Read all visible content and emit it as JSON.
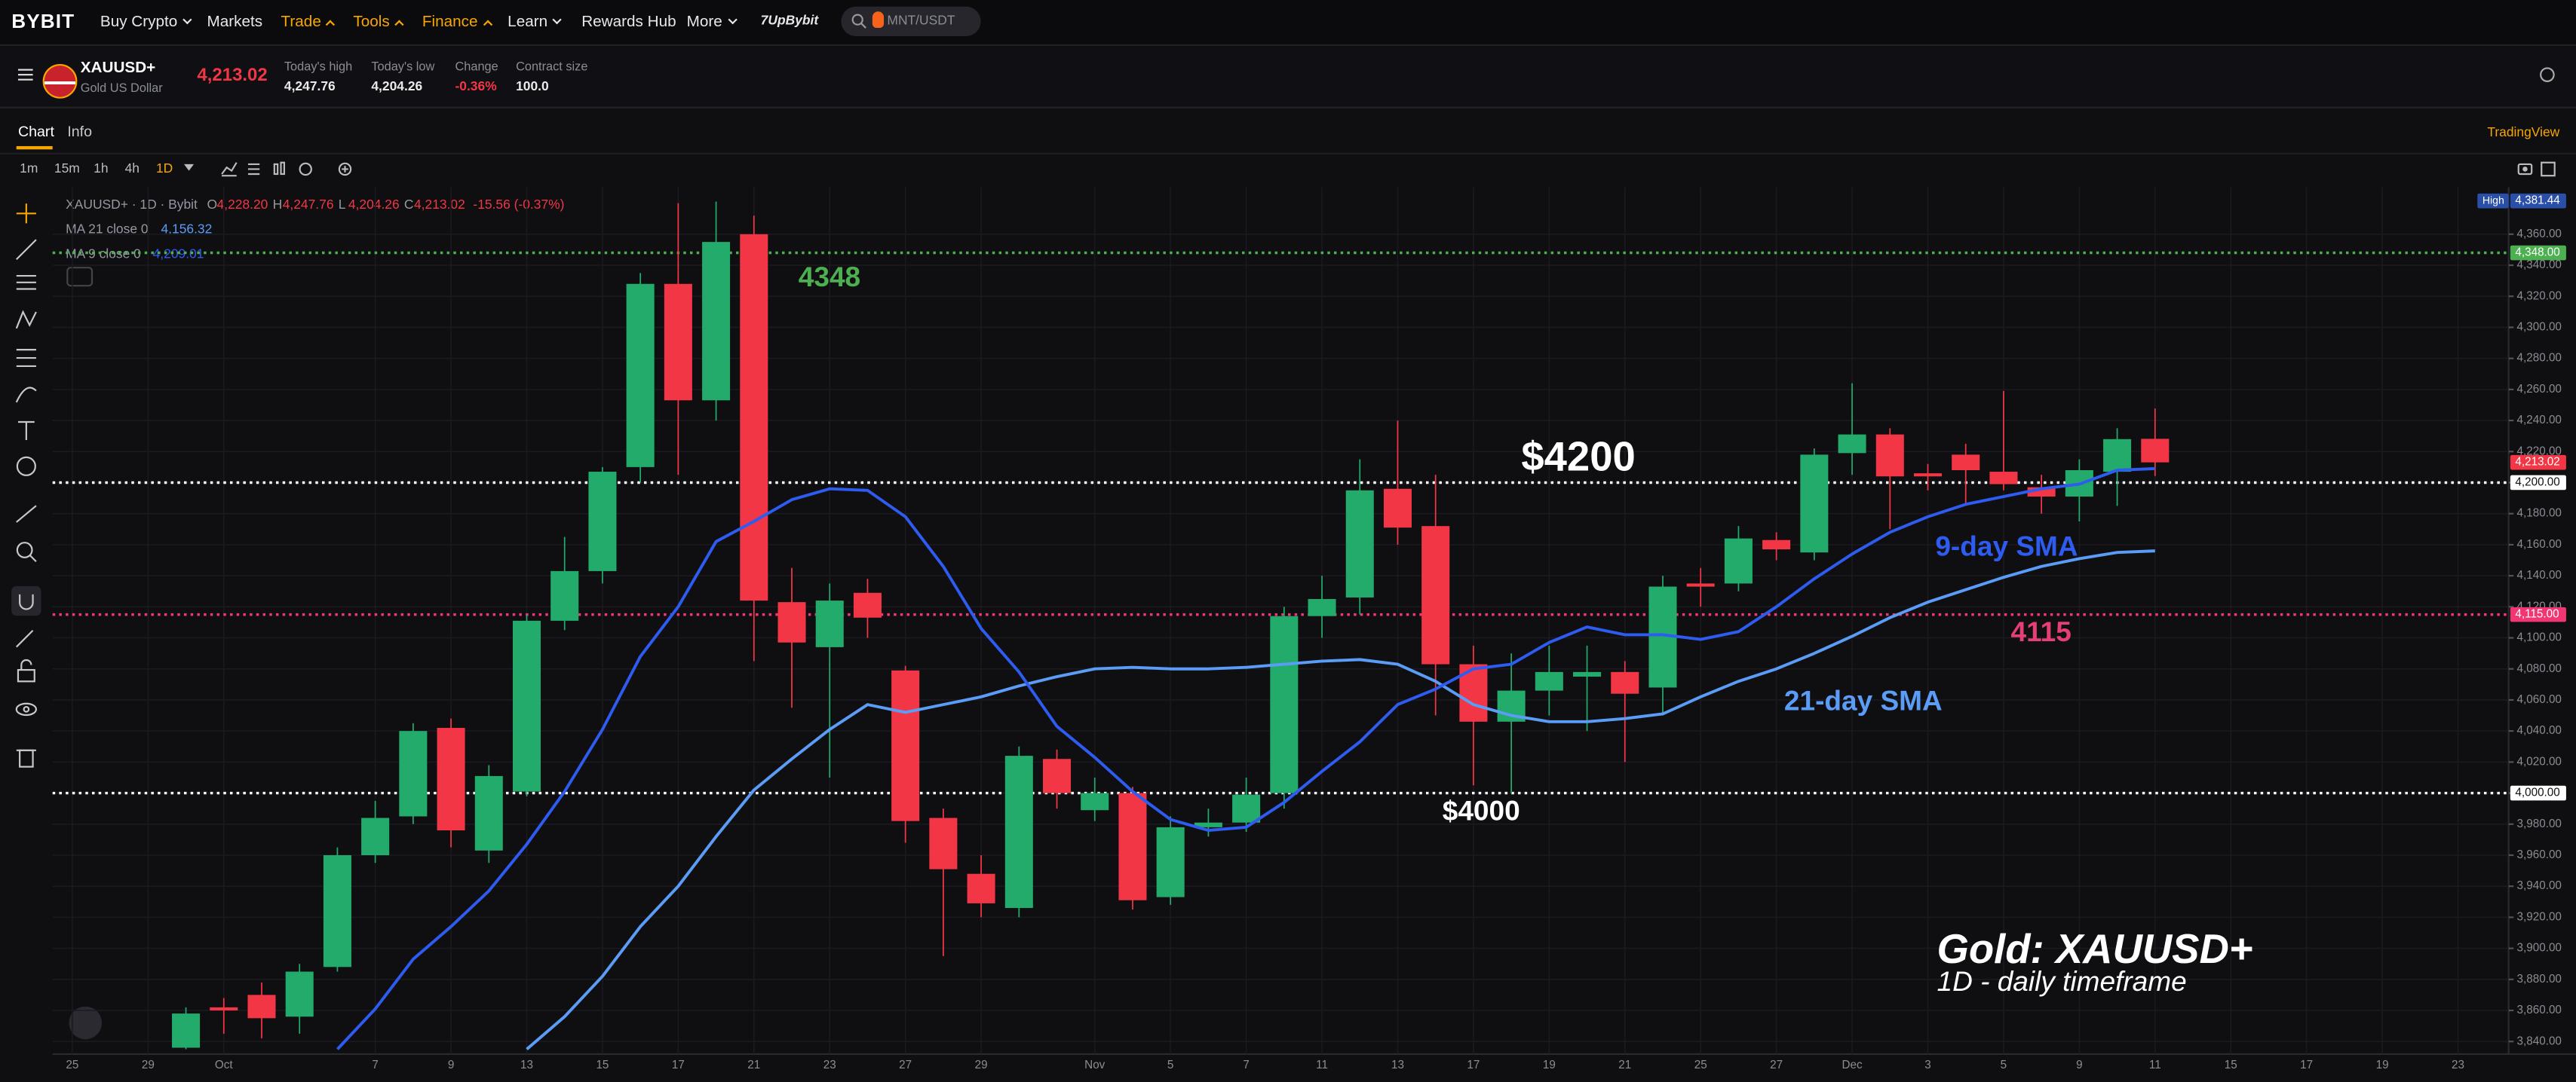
{
  "nav": {
    "logo": "BYBIT",
    "items": [
      "Buy Crypto",
      "Markets",
      "Trade",
      "Tools",
      "Finance",
      "Learn",
      "Rewards Hub",
      "More"
    ],
    "promo": "7UpBybit",
    "search": "MNT/USDT"
  },
  "symbol": {
    "name": "XAUUSD+",
    "desc": "Gold US Dollar",
    "price": "4,213.02",
    "stats": [
      {
        "label": "Today's high",
        "value": "4,247.76"
      },
      {
        "label": "Today's low",
        "value": "4,204.26"
      },
      {
        "label": "Change",
        "value": "-0.36%"
      },
      {
        "label": "Contract size",
        "value": "100.0"
      }
    ]
  },
  "tabs": [
    "Chart",
    "Info"
  ],
  "tradingview": "TradingView",
  "timeframes": [
    "1m",
    "15m",
    "1h",
    "4h",
    "1D"
  ],
  "legend": {
    "title": "XAUUSD+ · 1D · Bybit",
    "ohlc": [
      {
        "key": "O",
        "value": "4,228.20"
      },
      {
        "key": "H",
        "value": "4,247.76"
      },
      {
        "key": "L",
        "value": "4,204.26"
      },
      {
        "key": "C",
        "value": "4,213.02"
      }
    ],
    "change": "-15.56 (-0.37%)"
  },
  "chart_data": {
    "type": "candlestick",
    "up_color": "#22ab6b",
    "down_color": "#f23645",
    "categories": [
      "25",
      null,
      "29",
      null,
      "Oct",
      null,
      null,
      null,
      "7",
      null,
      "9",
      null,
      "13",
      null,
      "15",
      null,
      "17",
      null,
      "21",
      null,
      "23",
      null,
      "27",
      null,
      "29",
      null,
      null,
      "Nov",
      null,
      "5",
      null,
      "7",
      null,
      "11",
      null,
      "13",
      null,
      "17",
      null,
      "19",
      null,
      "21",
      null,
      "25",
      null,
      "27",
      null,
      "Dec",
      null,
      "3",
      null,
      "5",
      null,
      "9",
      null,
      "11",
      null,
      "15",
      null,
      "17",
      null,
      "19",
      null,
      "23"
    ],
    "open": [
      null,
      null,
      null,
      3836,
      3862,
      3870,
      3856,
      3888,
      3960,
      3985,
      4042,
      3963,
      4001,
      4111,
      4143,
      4210,
      4328,
      4253,
      4360,
      4123,
      4094,
      4129,
      4079,
      3984,
      3948,
      3926,
      4022,
      3989,
      4000,
      3933,
      3978,
      3981,
      4000,
      4114,
      4126,
      4196,
      4172,
      4083,
      4046,
      4066,
      4075,
      4078,
      4068,
      4135,
      4135,
      4163,
      4155,
      4219,
      4231,
      4206,
      4218,
      4207,
      4197,
      4191,
      4207,
      4228.2,
      null,
      null,
      null,
      null,
      null,
      null,
      null,
      null
    ],
    "high": [
      null,
      null,
      null,
      3862,
      3868,
      3878,
      3890,
      3965,
      3995,
      4045,
      4048,
      4018,
      4115,
      4165,
      4210,
      4335,
      4380,
      4381,
      4372,
      4145,
      4135,
      4138,
      4082,
      3990,
      3960,
      4030,
      4028,
      4010,
      4004,
      3985,
      3990,
      4010,
      4120,
      4140,
      4215,
      4240,
      4205,
      4095,
      4090,
      4095,
      4095,
      4085,
      4140,
      4145,
      4172,
      4168,
      4222,
      4264,
      4235,
      4212,
      4225,
      4259,
      4205,
      4215,
      4235,
      4247.76,
      null,
      null,
      null,
      null,
      null,
      null,
      null,
      null
    ],
    "low": [
      null,
      null,
      null,
      3835,
      3845,
      3842,
      3845,
      3885,
      3955,
      3980,
      3965,
      3955,
      3998,
      4105,
      4135,
      4200,
      4205,
      4240,
      4085,
      4055,
      4010,
      4100,
      3968,
      3895,
      3920,
      3920,
      3990,
      3982,
      3925,
      3928,
      3972,
      3975,
      3990,
      4100,
      4115,
      4160,
      4050,
      4005,
      4000,
      4050,
      4040,
      4020,
      4050,
      4120,
      4130,
      4150,
      4150,
      4205,
      4170,
      4195,
      4185,
      4195,
      4180,
      4175,
      4185,
      4204.26,
      null,
      null,
      null,
      null,
      null,
      null,
      null,
      null
    ],
    "close": [
      null,
      null,
      null,
      3858,
      3860,
      3855,
      3885,
      3960,
      3984,
      4040,
      3976,
      4011,
      4111,
      4143,
      4207,
      4328,
      4253,
      4355,
      4124,
      4097,
      4124,
      4113,
      3982,
      3951,
      3929,
      4024,
      4000,
      4000,
      3931,
      3978,
      3981,
      3999,
      4114,
      4125,
      4195,
      4171,
      4083,
      4046,
      4066,
      4078,
      4078,
      4064,
      4133,
      4133,
      4164,
      4157,
      4218,
      4231,
      4204,
      4204,
      4208,
      4199,
      4191,
      4208,
      4228,
      4213.02,
      null,
      null,
      null,
      null,
      null,
      null,
      null,
      null
    ],
    "lines": [
      {
        "name": "MA 21 close 0",
        "last": "4,156.32",
        "color": "#5b9cf6",
        "values": [
          null,
          null,
          null,
          null,
          null,
          null,
          null,
          null,
          null,
          null,
          null,
          null,
          3835,
          3856,
          3882,
          3914,
          3940,
          3972,
          4002,
          4022,
          4041,
          4057,
          4052,
          4057,
          4062,
          4069,
          4075,
          4080,
          4081,
          4080,
          4080,
          4081,
          4083,
          4085,
          4086,
          4083,
          4072,
          4057,
          4050,
          4046,
          4046,
          4048,
          4051,
          4062,
          4072,
          4080,
          4090,
          4101,
          4113,
          4123,
          4131,
          4139,
          4146,
          4151,
          4155,
          4156,
          null,
          null,
          null,
          null,
          null,
          null,
          null,
          null
        ]
      },
      {
        "name": "MA 9 close 0",
        "last": "4,209.01",
        "color": "#2f5cf0",
        "values": [
          null,
          null,
          null,
          null,
          null,
          null,
          null,
          3835,
          3861,
          3893,
          3914,
          3937,
          3967,
          4001,
          4041,
          4088,
          4120,
          4162,
          4175,
          4189,
          4196,
          4195,
          4178,
          4146,
          4106,
          4078,
          4043,
          4023,
          4001,
          3983,
          3976,
          3978,
          3994,
          4014,
          4033,
          4057,
          4067,
          4080,
          4083,
          4097,
          4107,
          4102,
          4102,
          4099,
          4104,
          4120,
          4138,
          4154,
          4168,
          4178,
          4186,
          4191,
          4196,
          4199,
          4208,
          4209,
          null,
          null,
          null,
          null,
          null,
          null,
          null,
          null
        ]
      }
    ],
    "hlines": [
      {
        "value": 4348,
        "label": "4,348.00",
        "color": "#4caf50"
      },
      {
        "value": 4200,
        "label": "4,200.00",
        "color": "#ffffff"
      },
      {
        "value": 4115,
        "label": "4,115.00",
        "color": "#f23674"
      },
      {
        "value": 4000,
        "label": "4,000.00",
        "color": "#ffffff"
      }
    ],
    "last_price": {
      "value": 4213.02,
      "label": "4,213.02"
    },
    "high_marker": {
      "name": "High",
      "value": 4381.44,
      "label": "4,381.44"
    },
    "annotations": [
      "4348",
      "$4200",
      "9-day SMA",
      "4115",
      "21-day SMA",
      "$4000",
      "Gold: XAUUSD+",
      "1D - daily timeframe"
    ],
    "ylim": [
      3834,
      4385
    ],
    "yticks": [
      {
        "value": 3840,
        "label": "3,840.00"
      },
      {
        "value": 3860,
        "label": "3,860.00"
      },
      {
        "value": 3880,
        "label": "3,880.00"
      },
      {
        "value": 3900,
        "label": "3,900.00"
      },
      {
        "value": 3920,
        "label": "3,920.00"
      },
      {
        "value": 3940,
        "label": "3,940.00"
      },
      {
        "value": 3960,
        "label": "3,960.00"
      },
      {
        "value": 3980,
        "label": "3,980.00"
      },
      {
        "value": 4000,
        "label": "4,000.00"
      },
      {
        "value": 4020,
        "label": "4,020.00"
      },
      {
        "value": 4040,
        "label": "4,040.00"
      },
      {
        "value": 4060,
        "label": "4,060.00"
      },
      {
        "value": 4080,
        "label": "4,080.00"
      },
      {
        "value": 4100,
        "label": "4,100.00"
      },
      {
        "value": 4120,
        "label": "4,120.00"
      },
      {
        "value": 4140,
        "label": "4,140.00"
      },
      {
        "value": 4160,
        "label": "4,160.00"
      },
      {
        "value": 4180,
        "label": "4,180.00"
      },
      {
        "value": 4200,
        "label": "4,200.00"
      },
      {
        "value": 4220,
        "label": "4,220.00"
      },
      {
        "value": 4240,
        "label": "4,240.00"
      },
      {
        "value": 4260,
        "label": "4,260.00"
      },
      {
        "value": 4280,
        "label": "4,280.00"
      },
      {
        "value": 4300,
        "label": "4,300.00"
      },
      {
        "value": 4320,
        "label": "4,320.00"
      },
      {
        "value": 4340,
        "label": "4,340.00"
      },
      {
        "value": 4360,
        "label": "4,360.00"
      }
    ],
    "grid": true
  }
}
